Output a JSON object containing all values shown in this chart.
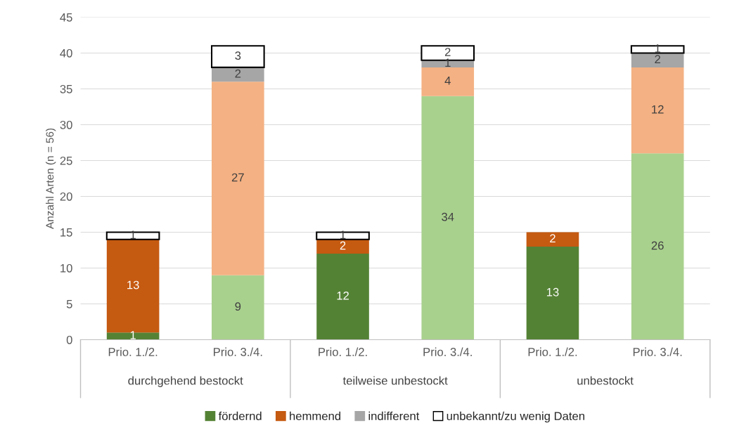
{
  "chart_data": {
    "type": "bar",
    "stacked": true,
    "ylabel": "Anzahl Arten (n = 56)",
    "categories": [
      "Prio. 1./2.",
      "Prio. 3./4.",
      "Prio. 1./2.",
      "Prio. 3./4.",
      "Prio. 1./2.",
      "Prio. 3./4."
    ],
    "annotations": [
      "durchgehend bestockt",
      "teilweise unbestockt",
      "unbestockt"
    ],
    "series": [
      {
        "name": "fördernd",
        "color": "#548235",
        "colors": [
          "#548235",
          "#a9d18e",
          "#548235",
          "#a9d18e",
          "#548235",
          "#a9d18e"
        ],
        "values": [
          1,
          9,
          12,
          34,
          13,
          26
        ]
      },
      {
        "name": "hemmend",
        "color": "#c55a11",
        "colors": [
          "#c55a11",
          "#f4b183",
          "#c55a11",
          "#f4b183",
          "#c55a11",
          "#f4b183"
        ],
        "values": [
          13,
          27,
          2,
          4,
          2,
          12
        ]
      },
      {
        "name": "indifferent",
        "color": "#a6a6a6",
        "values": [
          null,
          2,
          null,
          1,
          null,
          2
        ]
      },
      {
        "name": "unbekannt/zu wenig Daten",
        "color": "#ffffff",
        "values": [
          1,
          3,
          1,
          2,
          null,
          1
        ]
      }
    ],
    "ylim": [
      0,
      45
    ],
    "yticks": [
      0,
      5,
      10,
      15,
      20,
      25,
      30,
      35,
      40,
      45
    ],
    "grid": "y",
    "legend": "bottom",
    "data_labels": true
  }
}
